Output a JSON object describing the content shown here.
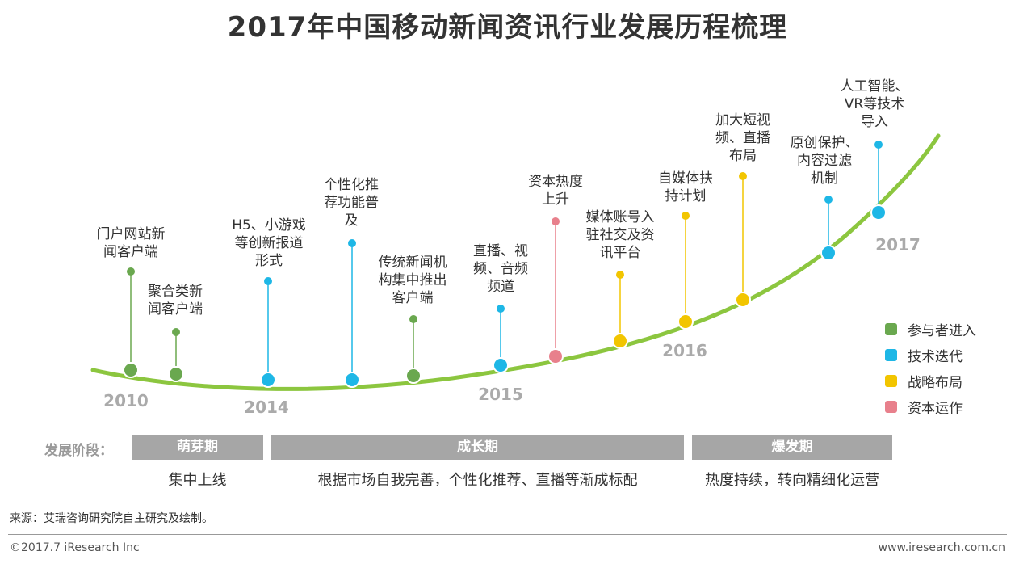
{
  "title": "2017年中国移动新闻资讯行业发展历程梳理",
  "colors": {
    "curve": "#8cc63f",
    "participant": "#6aa84f",
    "tech": "#1eb7e6",
    "strategy": "#f2c500",
    "capital": "#e8808c",
    "phase_bg": "#a6a6a6"
  },
  "events": [
    {
      "text": "门户网站新\n闻客户端",
      "category": "participant"
    },
    {
      "text": "聚合类新\n闻客户端",
      "category": "participant"
    },
    {
      "text": "H5、小游戏\n等创新报道\n形式",
      "category": "tech"
    },
    {
      "text": "个性化推\n荐功能普\n及",
      "category": "tech"
    },
    {
      "text": "传统新闻机\n构集中推出\n客户端",
      "category": "participant"
    },
    {
      "text": "直播、视\n频、音频\n频道",
      "category": "tech"
    },
    {
      "text": "资本热度\n上升",
      "category": "capital"
    },
    {
      "text": "媒体账号入\n驻社交及资\n讯平台",
      "category": "strategy"
    },
    {
      "text": "自媒体扶\n持计划",
      "category": "strategy"
    },
    {
      "text": "加大短视\n频、直播\n布局",
      "category": "strategy"
    },
    {
      "text": "原创保护、\n内容过滤\n机制",
      "category": "tech"
    },
    {
      "text": "人工智能、\nVR等技术\n导入",
      "category": "tech"
    }
  ],
  "years": [
    "2010",
    "2014",
    "2015",
    "2016",
    "2017"
  ],
  "legend": [
    {
      "label": "参与者进入",
      "category": "participant"
    },
    {
      "label": "技术迭代",
      "category": "tech"
    },
    {
      "label": "战略布局",
      "category": "strategy"
    },
    {
      "label": "资本运作",
      "category": "capital"
    }
  ],
  "stage_title": "发展阶段：",
  "phases": [
    {
      "name": "萌芽期",
      "desc": "集中上线"
    },
    {
      "name": "成长期",
      "desc": "根据市场自我完善，个性化推荐、直播等渐成标配"
    },
    {
      "name": "爆发期",
      "desc": "热度持续，转向精细化运营"
    }
  ],
  "source": "来源：艾瑞咨询研究院自主研究及绘制。",
  "footer_left": "©2017.7 iResearch Inc",
  "footer_right": "www.iresearch.com.cn"
}
